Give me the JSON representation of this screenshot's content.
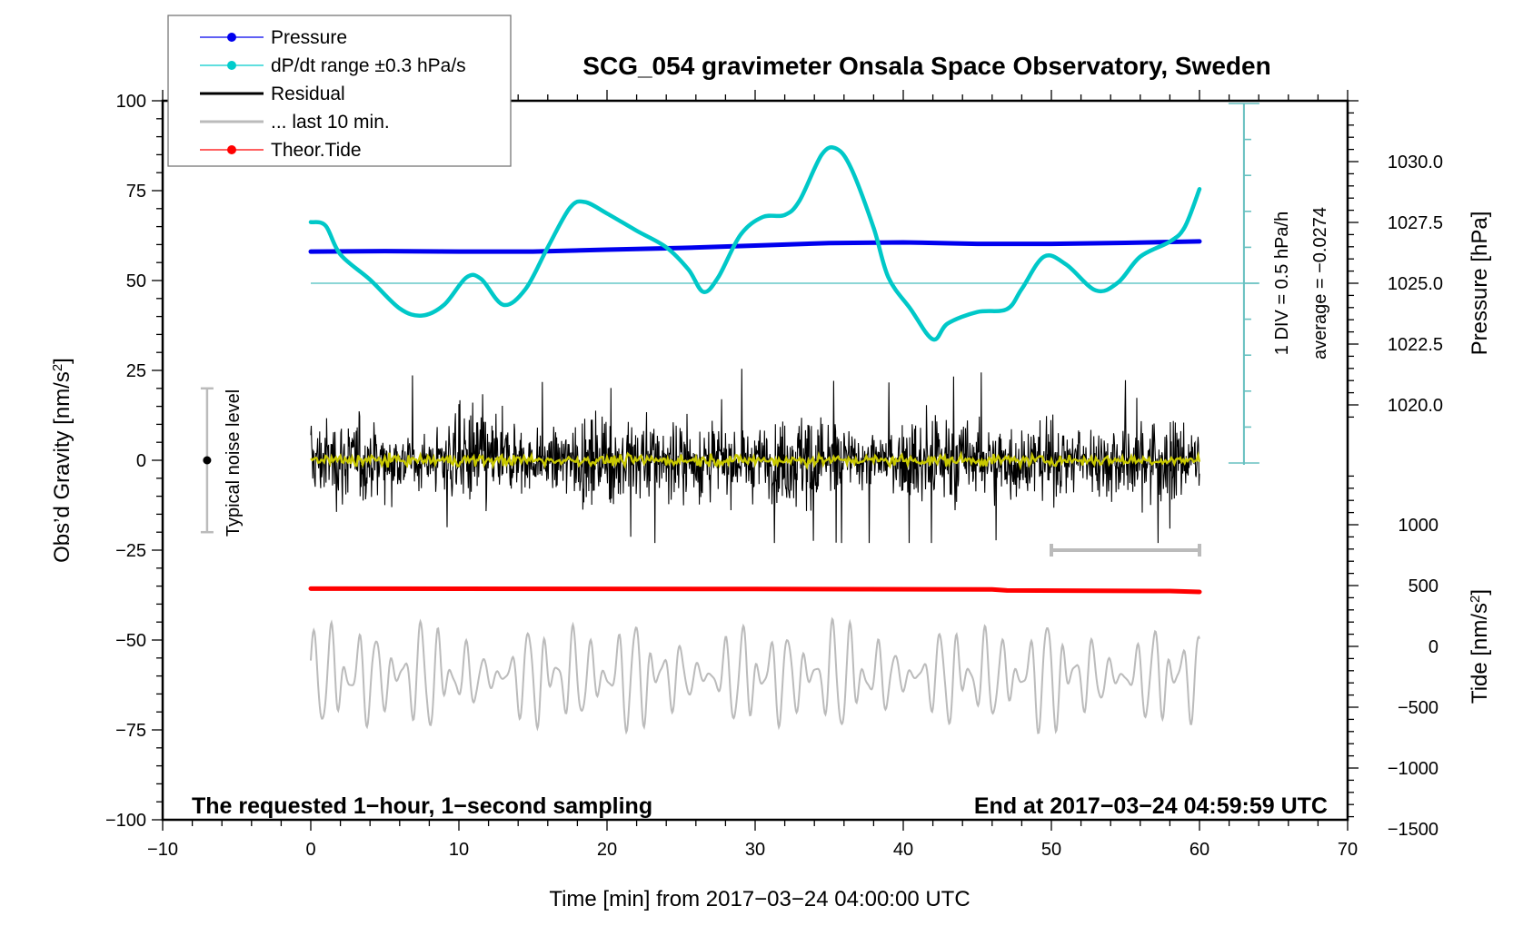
{
  "chart_data": {
    "type": "line",
    "title": "SCG_054 gravimeter Onsala Space Observatory, Sweden",
    "xlabel": "Time [min] from 2017−03−24 04:00:00 UTC",
    "ylabel_left": "Obs’d Gravity [nm/s",
    "ylabel_left_sup": "2",
    "ylabel_left_end": "]",
    "ylabel_right_top": "Pressure [hPa]",
    "ylabel_right_bottom": "Tide [nm/s",
    "ylabel_right_bottom_sup": "2",
    "ylabel_right_bottom_end": "]",
    "xlim": [
      -10,
      70
    ],
    "ylim_left": [
      -100,
      100
    ],
    "x_ticks": [
      -10,
      0,
      10,
      20,
      30,
      40,
      50,
      60,
      70
    ],
    "x_tick_labels": [
      "−10",
      "0",
      "10",
      "20",
      "30",
      "40",
      "50",
      "60",
      "70"
    ],
    "y_left_ticks": [
      100,
      75,
      50,
      25,
      0,
      -25,
      -50,
      -75,
      -100
    ],
    "y_left_tick_labels": [
      "100",
      "75",
      "50",
      "25",
      "0",
      "−25",
      "−50",
      "−75",
      "−100"
    ],
    "pressure_ticks": [
      1030.0,
      1027.5,
      1025.0,
      1022.5,
      1020.0
    ],
    "pressure_tick_labels": [
      "1030.0",
      "1027.5",
      "1025.0",
      "1022.5",
      "1020.0"
    ],
    "tide_ticks": [
      1000,
      500,
      0,
      -500,
      -1000,
      -1500
    ],
    "tide_tick_labels": [
      "1000",
      "500",
      "0",
      "−500",
      "−1000",
      "−1500"
    ],
    "annotations": {
      "bottom_left": "The requested 1−hour, 1−second sampling",
      "bottom_right": "End at 2017−03−24 04:59:59 UTC",
      "noise_label": "Typical noise level",
      "div_label": "1 DIV = 0.5 hPa/h",
      "average_label": "average = −0.0274"
    },
    "legend": {
      "placement": "top-left",
      "entries": [
        {
          "label": "Pressure",
          "color": "#0000ee",
          "marker": "dot"
        },
        {
          "label": "dP/dt range ±0.3 hPa/s",
          "color": "#00cccc",
          "marker": "dot"
        },
        {
          "label": "Residual",
          "color": "#000000",
          "marker": "line"
        },
        {
          "label": "... last 10 min.",
          "color": "#bbbbbb",
          "marker": "line"
        },
        {
          "label": "Theor.Tide",
          "color": "#ff0000",
          "marker": "dot"
        }
      ]
    },
    "series": [
      {
        "name": "Pressure",
        "axis": "pressure_hPa",
        "color": "#0000ee",
        "x": [
          0,
          5,
          10,
          15,
          20,
          25,
          30,
          35,
          40,
          45,
          50,
          55,
          60
        ],
        "y": [
          1026.3,
          1026.32,
          1026.3,
          1026.3,
          1026.38,
          1026.45,
          1026.55,
          1026.65,
          1026.68,
          1026.62,
          1026.62,
          1026.66,
          1026.72
        ]
      },
      {
        "name": "dP/dt",
        "axis": "dpdt_hPa_per_h",
        "zero_at_pressure": 1025.0,
        "color": "#00c8c8",
        "x": [
          0,
          1,
          2,
          4,
          6,
          7.5,
          9,
          10.5,
          11.5,
          13,
          14.5,
          16,
          17.5,
          18.5,
          20,
          22,
          24,
          25.5,
          26.5,
          27.5,
          29,
          30.5,
          32,
          33,
          34.5,
          35.5,
          36.5,
          38,
          39,
          40.5,
          42,
          43,
          45,
          47,
          48,
          49.5,
          51,
          53,
          54.5,
          56,
          58,
          59,
          60
        ],
        "y": [
          0.85,
          0.8,
          0.4,
          0.05,
          -0.35,
          -0.45,
          -0.3,
          0.08,
          0.06,
          -0.3,
          -0.08,
          0.5,
          1.05,
          1.13,
          0.97,
          0.73,
          0.5,
          0.19,
          -0.12,
          0.08,
          0.67,
          0.92,
          0.95,
          1.15,
          1.79,
          1.87,
          1.59,
          0.77,
          0.08,
          -0.36,
          -0.78,
          -0.56,
          -0.4,
          -0.36,
          -0.08,
          0.37,
          0.26,
          -0.1,
          0.01,
          0.37,
          0.58,
          0.78,
          1.31
        ]
      },
      {
        "name": "Theor.Tide",
        "axis": "tide_nm_s2",
        "color": "#ff0000",
        "x": [
          0,
          30,
          46,
          47,
          58,
          60
        ],
        "y": [
          475,
          472,
          468,
          460,
          455,
          448
        ]
      },
      {
        "name": "Residual",
        "axis": "gravity_nm_s2",
        "color": "#000000",
        "x_range": [
          0,
          60
        ],
        "center": 0,
        "typical_amplitude": 12,
        "peak_max": 27,
        "peak_min": -23
      },
      {
        "name": "Residual smoothed",
        "axis": "gravity_nm_s2",
        "color": "#c8c800",
        "x_range": [
          0,
          60
        ],
        "center": 0,
        "typical_amplitude": 1.5
      },
      {
        "name": "... last 10 min.",
        "axis": "gravity_nm_s2",
        "color": "#bbbbbb",
        "x_range": [
          0,
          60
        ],
        "center": -60,
        "peak_max": -40,
        "peak_min": -82
      }
    ],
    "noise_level_bar": {
      "x": -7,
      "center": 0,
      "low": -20,
      "high": 20
    },
    "last10_bracket": {
      "x_start": 50,
      "x_end": 60,
      "y": -25
    },
    "dpdt_scale": {
      "x": 63,
      "divisions": 10,
      "div_value_hPa_per_h": 0.5,
      "zero_pressure": 1025.0
    }
  }
}
